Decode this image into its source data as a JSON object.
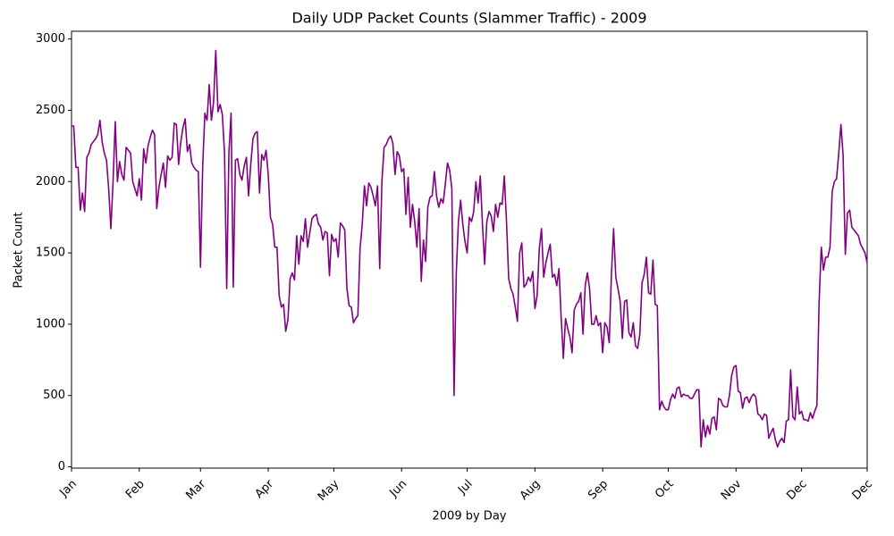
{
  "chart_data": {
    "type": "line",
    "title": "Daily UDP Packet Counts (Slammer Traffic) - 2009",
    "x_label": "2009 by Day",
    "y_label": "Packet Count",
    "color": "#800080",
    "grid": false,
    "xlim": [
      0,
      364
    ],
    "ylim": [
      -9,
      3054
    ],
    "xticks": [
      {
        "value": 0,
        "label": "Jan"
      },
      {
        "value": 31,
        "label": "Feb"
      },
      {
        "value": 59,
        "label": "Mar"
      },
      {
        "value": 90,
        "label": "Apr"
      },
      {
        "value": 120,
        "label": "May"
      },
      {
        "value": 151,
        "label": "Jun"
      },
      {
        "value": 181,
        "label": "Jul"
      },
      {
        "value": 212,
        "label": "Aug"
      },
      {
        "value": 243,
        "label": "Sep"
      },
      {
        "value": 273,
        "label": "Oct"
      },
      {
        "value": 304,
        "label": "Nov"
      },
      {
        "value": 334,
        "label": "Dec"
      },
      {
        "value": 364,
        "label": "Dec"
      }
    ],
    "yticks": [
      0,
      500,
      1000,
      1500,
      2000,
      2500,
      3000
    ],
    "x": [
      0,
      1,
      2,
      3,
      4,
      5,
      6,
      7,
      8,
      9,
      10,
      11,
      12,
      13,
      14,
      15,
      16,
      17,
      18,
      19,
      20,
      21,
      22,
      23,
      24,
      25,
      26,
      27,
      28,
      29,
      30,
      31,
      32,
      33,
      34,
      35,
      36,
      37,
      38,
      39,
      40,
      41,
      42,
      43,
      44,
      45,
      46,
      47,
      48,
      49,
      50,
      51,
      52,
      53,
      54,
      55,
      56,
      57,
      58,
      59,
      60,
      61,
      62,
      63,
      64,
      65,
      66,
      67,
      68,
      69,
      70,
      71,
      72,
      73,
      74,
      75,
      76,
      77,
      78,
      79,
      80,
      81,
      82,
      83,
      84,
      85,
      86,
      87,
      88,
      89,
      90,
      91,
      92,
      93,
      94,
      95,
      96,
      97,
      98,
      99,
      100,
      101,
      102,
      103,
      104,
      105,
      106,
      107,
      108,
      109,
      110,
      111,
      112,
      113,
      114,
      115,
      116,
      117,
      118,
      119,
      120,
      121,
      122,
      123,
      124,
      125,
      126,
      127,
      128,
      129,
      130,
      131,
      132,
      133,
      134,
      135,
      136,
      137,
      138,
      139,
      140,
      141,
      142,
      143,
      144,
      145,
      146,
      147,
      148,
      149,
      150,
      151,
      152,
      153,
      154,
      155,
      156,
      157,
      158,
      159,
      160,
      161,
      162,
      163,
      164,
      165,
      166,
      167,
      168,
      169,
      170,
      171,
      172,
      173,
      174,
      175,
      176,
      177,
      178,
      179,
      180,
      181,
      182,
      183,
      184,
      185,
      186,
      187,
      188,
      189,
      190,
      191,
      192,
      193,
      194,
      195,
      196,
      197,
      198,
      199,
      200,
      201,
      202,
      203,
      204,
      205,
      206,
      207,
      208,
      209,
      210,
      211,
      212,
      213,
      214,
      215,
      216,
      217,
      218,
      219,
      220,
      221,
      222,
      223,
      224,
      225,
      226,
      227,
      228,
      229,
      230,
      231,
      232,
      233,
      234,
      235,
      236,
      237,
      238,
      239,
      240,
      241,
      242,
      243,
      244,
      245,
      246,
      247,
      248,
      249,
      250,
      251,
      252,
      253,
      254,
      255,
      256,
      257,
      258,
      259,
      260,
      261,
      262,
      263,
      264,
      265,
      266,
      267,
      268,
      269,
      270,
      271,
      272,
      273,
      274,
      275,
      276,
      277,
      278,
      279,
      280,
      281,
      282,
      283,
      284,
      285,
      286,
      287,
      288,
      289,
      290,
      291,
      292,
      293,
      294,
      295,
      296,
      297,
      298,
      299,
      300,
      301,
      302,
      303,
      304,
      305,
      306,
      307,
      308,
      309,
      310,
      311,
      312,
      313,
      314,
      315,
      316,
      317,
      318,
      319,
      320,
      321,
      322,
      323,
      324,
      325,
      326,
      327,
      328,
      329,
      330,
      331,
      332,
      333,
      334,
      335,
      336,
      337,
      338,
      339,
      340,
      341,
      342,
      343,
      344,
      345,
      346,
      347,
      348,
      349,
      350,
      351,
      352,
      353,
      354,
      355,
      356,
      357,
      358,
      359,
      360,
      361,
      362,
      363,
      364
    ],
    "values": [
      2390,
      2390,
      2100,
      2100,
      1800,
      1920,
      1790,
      2170,
      2200,
      2260,
      2280,
      2300,
      2330,
      2430,
      2280,
      2200,
      2150,
      1950,
      1670,
      2000,
      2420,
      2000,
      2140,
      2050,
      2010,
      2240,
      2220,
      2200,
      2000,
      1950,
      1900,
      2020,
      1870,
      2230,
      2130,
      2250,
      2310,
      2360,
      2330,
      1810,
      1960,
      2050,
      2130,
      1960,
      2180,
      2150,
      2170,
      2410,
      2400,
      2120,
      2280,
      2380,
      2440,
      2210,
      2260,
      2130,
      2100,
      2080,
      2070,
      1400,
      2100,
      2480,
      2430,
      2680,
      2430,
      2560,
      2920,
      2490,
      2540,
      2470,
      2200,
      1250,
      2200,
      2480,
      1260,
      2150,
      2160,
      2050,
      2010,
      2110,
      2170,
      1900,
      2120,
      2300,
      2340,
      2350,
      1920,
      2190,
      2150,
      2220,
      2050,
      1750,
      1700,
      1540,
      1540,
      1200,
      1120,
      1140,
      950,
      1030,
      1320,
      1360,
      1310,
      1620,
      1420,
      1620,
      1580,
      1740,
      1540,
      1640,
      1740,
      1760,
      1770,
      1700,
      1680,
      1590,
      1650,
      1640,
      1340,
      1630,
      1580,
      1600,
      1470,
      1710,
      1690,
      1660,
      1250,
      1130,
      1120,
      1010,
      1040,
      1060,
      1530,
      1700,
      1970,
      1830,
      1990,
      1960,
      1900,
      1830,
      1970,
      1390,
      2000,
      2240,
      2260,
      2300,
      2320,
      2270,
      2050,
      2210,
      2180,
      2070,
      2090,
      1770,
      2030,
      1680,
      1840,
      1720,
      1540,
      1810,
      1300,
      1590,
      1440,
      1820,
      1890,
      1900,
      2070,
      1900,
      1820,
      1880,
      1850,
      1980,
      2130,
      2080,
      1950,
      500,
      1350,
      1720,
      1870,
      1700,
      1580,
      1500,
      1750,
      1720,
      1790,
      2000,
      1850,
      2040,
      1700,
      1420,
      1720,
      1790,
      1760,
      1650,
      1840,
      1750,
      1850,
      1840,
      2040,
      1720,
      1320,
      1250,
      1210,
      1120,
      1020,
      1500,
      1570,
      1260,
      1280,
      1330,
      1300,
      1370,
      1110,
      1200,
      1530,
      1670,
      1330,
      1430,
      1500,
      1560,
      1330,
      1350,
      1270,
      1390,
      1050,
      760,
      1040,
      970,
      910,
      800,
      1100,
      1140,
      1160,
      1220,
      930,
      1270,
      1360,
      1250,
      1000,
      1000,
      1060,
      990,
      1010,
      800,
      1010,
      980,
      870,
      1350,
      1670,
      1330,
      1250,
      1160,
      900,
      1160,
      1170,
      940,
      910,
      1010,
      850,
      830,
      930,
      1290,
      1350,
      1470,
      1220,
      1210,
      1450,
      1140,
      1130,
      400,
      460,
      420,
      400,
      400,
      470,
      510,
      480,
      550,
      560,
      490,
      510,
      500,
      500,
      480,
      480,
      510,
      540,
      540,
      140,
      330,
      210,
      290,
      230,
      340,
      350,
      260,
      480,
      470,
      430,
      420,
      420,
      500,
      640,
      700,
      710,
      530,
      520,
      410,
      480,
      490,
      450,
      490,
      510,
      490,
      370,
      360,
      330,
      370,
      360,
      200,
      240,
      270,
      190,
      140,
      180,
      200,
      170,
      320,
      330,
      680,
      350,
      330,
      560,
      370,
      390,
      330,
      330,
      320,
      380,
      340,
      390,
      430,
      1150,
      1540,
      1380,
      1470,
      1470,
      1540,
      1930,
      2000,
      2020,
      2200,
      2400,
      2180,
      1490,
      1780,
      1800,
      1680,
      1660,
      1640,
      1620,
      1560,
      1530,
      1500,
      1430
    ]
  }
}
